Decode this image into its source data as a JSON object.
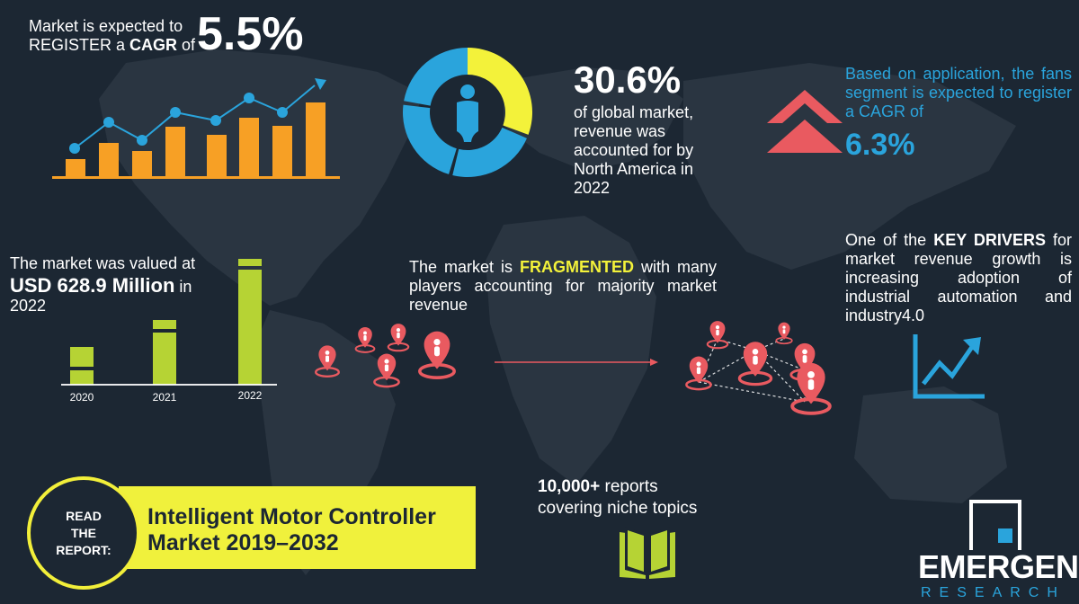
{
  "cagr": {
    "line1": "Market is expected to",
    "line2_prefix": "REGISTER a ",
    "line2_bold": "CAGR",
    "line2_suffix": " of",
    "value": "5.5%"
  },
  "share": {
    "value": "30.6%",
    "line1": "of global market,",
    "line2": "revenue was",
    "line3": "accounted for by",
    "line4": "North America in",
    "line5": "2022",
    "donut_fraction": 0.306
  },
  "application": {
    "text": "Based on application, the fans segment is expected to register a CAGR of",
    "value": "6.3%"
  },
  "valuation": {
    "line1": "The market was valued at",
    "amount": "USD 628.9 Million",
    "in": " in",
    "year": "2022",
    "bars": [
      {
        "label": "2020"
      },
      {
        "label": "2021"
      },
      {
        "label": "2022"
      }
    ]
  },
  "fragmented": {
    "prefix": "The market is ",
    "highlight": "FRAGMENTED",
    "suffix": " with many players accounting for majority market revenue"
  },
  "drivers": {
    "prefix": "One of the ",
    "bold": "KEY DRIVERS",
    "suffix": " for market revenue growth is increasing adoption of industrial automation and industry4.0"
  },
  "read": {
    "line1": "READ",
    "line2": "THE",
    "line3": "REPORT:",
    "title1": "Intelligent Motor Controller",
    "title2": "Market 2019–2032"
  },
  "reports": {
    "bold": "10,000+",
    "line1_suffix": " reports",
    "line2": "covering niche topics"
  },
  "brand": {
    "name": "EMERGEN",
    "sub": "RESEARCH"
  },
  "colors": {
    "background": "#1c2733",
    "orange": "#f7a025",
    "blue": "#2aa4dc",
    "yellow": "#f3f23a",
    "lime": "#b6d334",
    "red": "#e95a60"
  },
  "icons": [
    "growth-bar-chart-icon",
    "person-icon",
    "double-chevron-up-icon",
    "location-pin-icon",
    "trend-chart-icon",
    "open-book-icon",
    "emergen-logo-icon"
  ]
}
